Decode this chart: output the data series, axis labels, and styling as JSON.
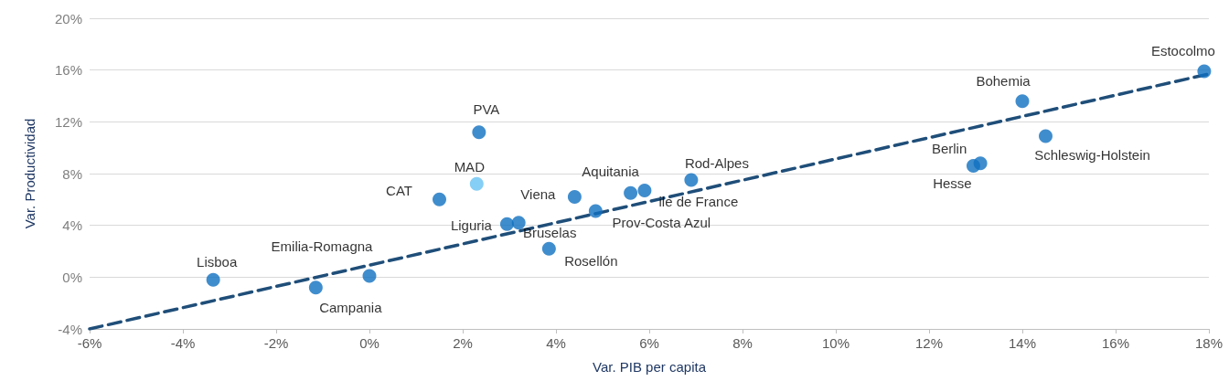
{
  "chart_data": {
    "type": "scatter",
    "xlabel": "Var. PIB per capita",
    "ylabel": "Var. Productividad",
    "xlim": [
      -6,
      18
    ],
    "ylim": [
      -4,
      20
    ],
    "xticks": [
      {
        "value": -6,
        "label": "-6%"
      },
      {
        "value": -4,
        "label": "-4%"
      },
      {
        "value": -2,
        "label": "-2%"
      },
      {
        "value": 0,
        "label": "0%"
      },
      {
        "value": 2,
        "label": "2%"
      },
      {
        "value": 4,
        "label": "4%"
      },
      {
        "value": 6,
        "label": "6%"
      },
      {
        "value": 8,
        "label": "8%"
      },
      {
        "value": 10,
        "label": "10%"
      },
      {
        "value": 12,
        "label": "12%"
      },
      {
        "value": 14,
        "label": "14%"
      },
      {
        "value": 16,
        "label": "16%"
      },
      {
        "value": 18,
        "label": "18%"
      }
    ],
    "yticks": [
      {
        "value": -4,
        "label": "-4%"
      },
      {
        "value": 0,
        "label": "0%"
      },
      {
        "value": 4,
        "label": "4%"
      },
      {
        "value": 8,
        "label": "8%"
      },
      {
        "value": 12,
        "label": "12%"
      },
      {
        "value": 16,
        "label": "16%"
      },
      {
        "value": 20,
        "label": "20%"
      }
    ],
    "grid": "y",
    "marker": "circle",
    "series": [
      {
        "x": [
          -3.35,
          -1.15,
          0,
          1.5,
          2.35,
          2.3,
          2.95,
          3.2,
          3.85,
          4.4,
          4.85,
          5.6,
          5.9,
          6.9,
          12.95,
          13.1,
          14.0,
          14.5,
          17.9
        ],
        "values": [
          -0.2,
          -0.8,
          0.1,
          6.0,
          11.2,
          7.2,
          4.1,
          4.2,
          2.2,
          6.2,
          5.1,
          6.5,
          6.7,
          7.5,
          8.6,
          8.8,
          13.6,
          10.9,
          15.9
        ],
        "colors": [
          "#1070c0",
          "#1070c0",
          "#1070c0",
          "#1070c0",
          "#1070c0",
          "#66c2f2",
          "#1070c0",
          "#1070c0",
          "#1070c0",
          "#1070c0",
          "#1070c0",
          "#1070c0",
          "#1070c0",
          "#1070c0",
          "#1070c0",
          "#1070c0",
          "#1070c0",
          "#1070c0",
          "#1070c0"
        ]
      },
      {
        "type": "line",
        "color": "#1f4e79",
        "line_style": "dashed",
        "marker": "none",
        "x": [
          -6,
          18
        ],
        "values": [
          -4.0,
          15.7
        ]
      }
    ],
    "annotations": [
      {
        "text": "Lisboa",
        "x": -3.35,
        "y": -0.2
      },
      {
        "text": "Campania",
        "x": -1.15,
        "y": -0.8
      },
      {
        "text": "Emilia-Romagna",
        "x": 0,
        "y": 0.1
      },
      {
        "text": "CAT",
        "x": 1.5,
        "y": 6.0
      },
      {
        "text": "PVA",
        "x": 2.35,
        "y": 11.2
      },
      {
        "text": "MAD",
        "x": 2.3,
        "y": 7.2
      },
      {
        "text": "Liguria",
        "x": 2.95,
        "y": 4.1
      },
      {
        "text": "Bruselas",
        "x": 3.2,
        "y": 4.2
      },
      {
        "text": "Rosellón",
        "x": 3.85,
        "y": 2.2
      },
      {
        "text": "Viena",
        "x": 4.4,
        "y": 6.2
      },
      {
        "text": "Prov-Costa Azul",
        "x": 4.85,
        "y": 5.1
      },
      {
        "text": "Aquitania",
        "x": 5.6,
        "y": 6.5
      },
      {
        "text": "ile de France",
        "x": 5.9,
        "y": 6.7
      },
      {
        "text": "Rod-Alpes",
        "x": 6.9,
        "y": 7.5
      },
      {
        "text": "Hesse",
        "x": 12.95,
        "y": 8.6
      },
      {
        "text": "Berlin",
        "x": 13.1,
        "y": 8.8
      },
      {
        "text": "Bohemia",
        "x": 14.0,
        "y": 13.6
      },
      {
        "text": "Schleswig-Holstein",
        "x": 14.5,
        "y": 10.9
      },
      {
        "text": "Estocolmo",
        "x": 17.9,
        "y": 15.9
      }
    ]
  }
}
